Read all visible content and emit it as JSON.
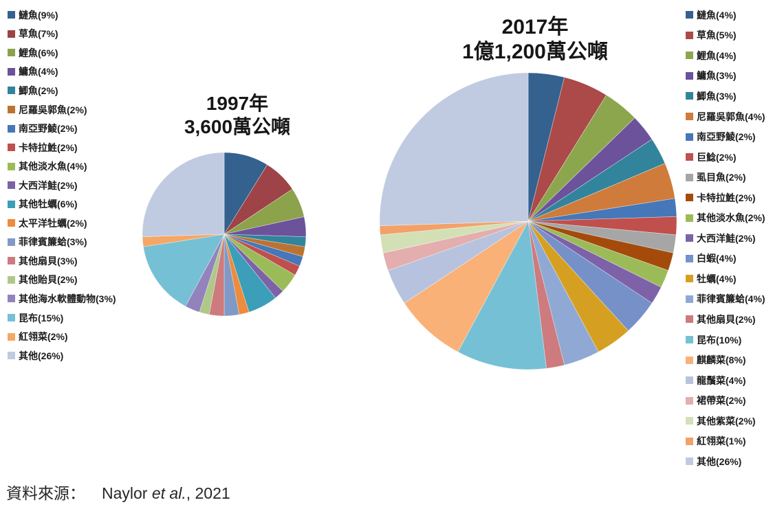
{
  "footer": {
    "prefix": "資料來源：",
    "author": "Naylor ",
    "etal": "et al.",
    "suffix": ", 2021"
  },
  "chart_data": [
    {
      "type": "pie",
      "year": "1997",
      "title_lines": [
        "1997年",
        "3,600萬公噸"
      ],
      "total_tonnage_label": "3,600萬公噸",
      "start_angle_deg": 0,
      "direction": "clockwise",
      "legend_position": "left",
      "slices": [
        {
          "label": "鰱魚",
          "pct": 9,
          "color": "#35618F"
        },
        {
          "label": "草魚",
          "pct": 7,
          "color": "#9E4347"
        },
        {
          "label": "鯉魚",
          "pct": 6,
          "color": "#8CA24B"
        },
        {
          "label": "鱅魚",
          "pct": 4,
          "color": "#6B529B"
        },
        {
          "label": "鯽魚",
          "pct": 2,
          "color": "#31849B"
        },
        {
          "label": "尼羅吳郭魚",
          "pct": 2,
          "color": "#BC7332"
        },
        {
          "label": "南亞野鯪",
          "pct": 2,
          "color": "#4677B8"
        },
        {
          "label": "卡特拉鮏",
          "pct": 2,
          "color": "#C0504D"
        },
        {
          "label": "其他淡水魚",
          "pct": 4,
          "color": "#9BBB59"
        },
        {
          "label": "大西洋鮭",
          "pct": 2,
          "color": "#7D62A8"
        },
        {
          "label": "其他牡蠣",
          "pct": 6,
          "color": "#3C9EB8"
        },
        {
          "label": "太平洋牡蠣",
          "pct": 2,
          "color": "#EC8C3C"
        },
        {
          "label": "菲律賓簾蛤",
          "pct": 3,
          "color": "#8099C7"
        },
        {
          "label": "其他扇貝",
          "pct": 3,
          "color": "#CD7B7E"
        },
        {
          "label": "其他貽貝",
          "pct": 2,
          "color": "#AFC888"
        },
        {
          "label": "其他海水軟體動物",
          "pct": 3,
          "color": "#9383BC"
        },
        {
          "label": "昆布",
          "pct": 15,
          "color": "#76C0D5"
        },
        {
          "label": "紅翎菜",
          "pct": 2,
          "color": "#F5A765"
        },
        {
          "label": "其他",
          "pct": 26,
          "color": "#C0CBE1"
        }
      ]
    },
    {
      "type": "pie",
      "year": "2017",
      "title_lines": [
        "2017年",
        "1億1,200萬公噸"
      ],
      "total_tonnage_label": "1億1,200萬公噸",
      "start_angle_deg": 0,
      "direction": "clockwise",
      "legend_position": "right",
      "slices": [
        {
          "label": "鰱魚",
          "pct": 4,
          "color": "#35618F"
        },
        {
          "label": "草魚",
          "pct": 5,
          "color": "#AB4A48"
        },
        {
          "label": "鯉魚",
          "pct": 4,
          "color": "#8CA64E"
        },
        {
          "label": "鱅魚",
          "pct": 3,
          "color": "#6B529B"
        },
        {
          "label": "鯽魚",
          "pct": 3,
          "color": "#31849B"
        },
        {
          "label": "尼羅吳郭魚",
          "pct": 4,
          "color": "#CF7B3B"
        },
        {
          "label": "南亞野鯪",
          "pct": 2,
          "color": "#4677B8"
        },
        {
          "label": "巨鯰",
          "pct": 2,
          "color": "#C0504D"
        },
        {
          "label": "虱目魚",
          "pct": 2,
          "color": "#A6A6A6"
        },
        {
          "label": "卡特拉鮏",
          "pct": 2,
          "color": "#A44B0C"
        },
        {
          "label": "其他淡水魚",
          "pct": 2,
          "color": "#9BBB59"
        },
        {
          "label": "大西洋鮭",
          "pct": 2,
          "color": "#7D62A8"
        },
        {
          "label": "白蝦",
          "pct": 4,
          "color": "#7691C8"
        },
        {
          "label": "牡蠣",
          "pct": 4,
          "color": "#D5A021"
        },
        {
          "label": "菲律賓簾蛤",
          "pct": 4,
          "color": "#8FA9D4"
        },
        {
          "label": "其他扇貝",
          "pct": 2,
          "color": "#CD7B7E"
        },
        {
          "label": "昆布",
          "pct": 10,
          "color": "#76C0D5"
        },
        {
          "label": "麒麟菜",
          "pct": 8,
          "color": "#F9B178"
        },
        {
          "label": "龍鬚菜",
          "pct": 4,
          "color": "#B7C3DE"
        },
        {
          "label": "裙帶菜",
          "pct": 2,
          "color": "#E3AEAD"
        },
        {
          "label": "其他紫菜",
          "pct": 2,
          "color": "#D3E0B6"
        },
        {
          "label": "紅翎菜",
          "pct": 1,
          "color": "#F2A169"
        },
        {
          "label": "其他",
          "pct": 26,
          "color": "#C0CBE1"
        }
      ]
    }
  ]
}
